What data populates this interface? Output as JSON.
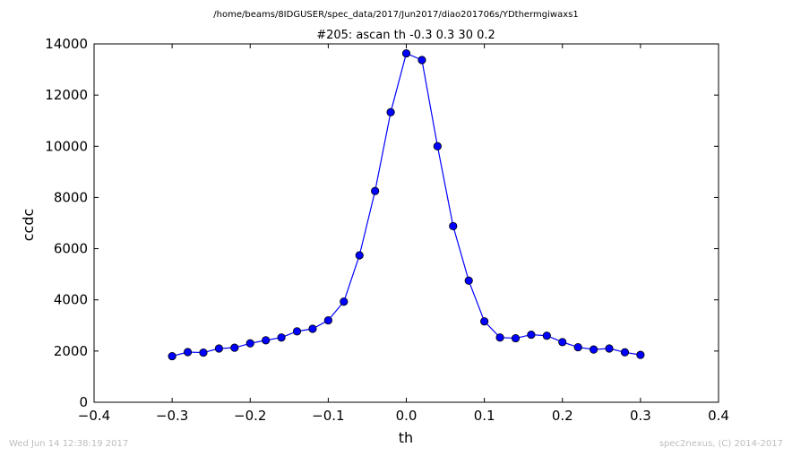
{
  "header": {
    "file_path": "/home/beams/8IDGUSER/spec_data/2017/Jun2017/diao201706s/YDthermgiwaxs1"
  },
  "footer": {
    "timestamp": "Wed Jun 14 12:38:19 2017",
    "credit": "spec2nexus, (C) 2014-2017"
  },
  "chart_data": {
    "type": "line",
    "title": "#205: ascan  th -0.3 0.3  30 0.2",
    "xlabel": "th",
    "ylabel": "ccdc",
    "xlim": [
      -0.4,
      0.4
    ],
    "ylim": [
      0,
      14000
    ],
    "xticks": [
      -0.4,
      -0.3,
      -0.2,
      -0.1,
      0.0,
      0.1,
      0.2,
      0.3,
      0.4
    ],
    "xtick_labels": [
      "−0.4",
      "−0.3",
      "−0.2",
      "−0.1",
      "0.0",
      "0.1",
      "0.2",
      "0.3",
      "0.4"
    ],
    "yticks": [
      0,
      2000,
      4000,
      6000,
      8000,
      10000,
      12000,
      14000
    ],
    "ytick_labels": [
      "0",
      "2000",
      "4000",
      "6000",
      "8000",
      "10000",
      "12000",
      "14000"
    ],
    "grid": false,
    "series_color": "#0000ff",
    "marker": "circle",
    "series": [
      {
        "x": [
          -0.3,
          -0.28,
          -0.26,
          -0.24,
          -0.22,
          -0.2,
          -0.18,
          -0.16,
          -0.14,
          -0.12,
          -0.1,
          -0.08,
          -0.06,
          -0.04,
          -0.02,
          0.0,
          0.02,
          0.04,
          0.06,
          0.08,
          0.1,
          0.12,
          0.14,
          0.16,
          0.18,
          0.2,
          0.22,
          0.24,
          0.26,
          0.28,
          0.3
        ],
        "y": [
          1800,
          1960,
          1940,
          2100,
          2130,
          2300,
          2420,
          2530,
          2770,
          2870,
          3200,
          3930,
          5740,
          8250,
          11330,
          13630,
          13370,
          10000,
          6880,
          4750,
          3160,
          2530,
          2500,
          2640,
          2600,
          2350,
          2150,
          2060,
          2100,
          1950,
          1850
        ]
      }
    ]
  }
}
